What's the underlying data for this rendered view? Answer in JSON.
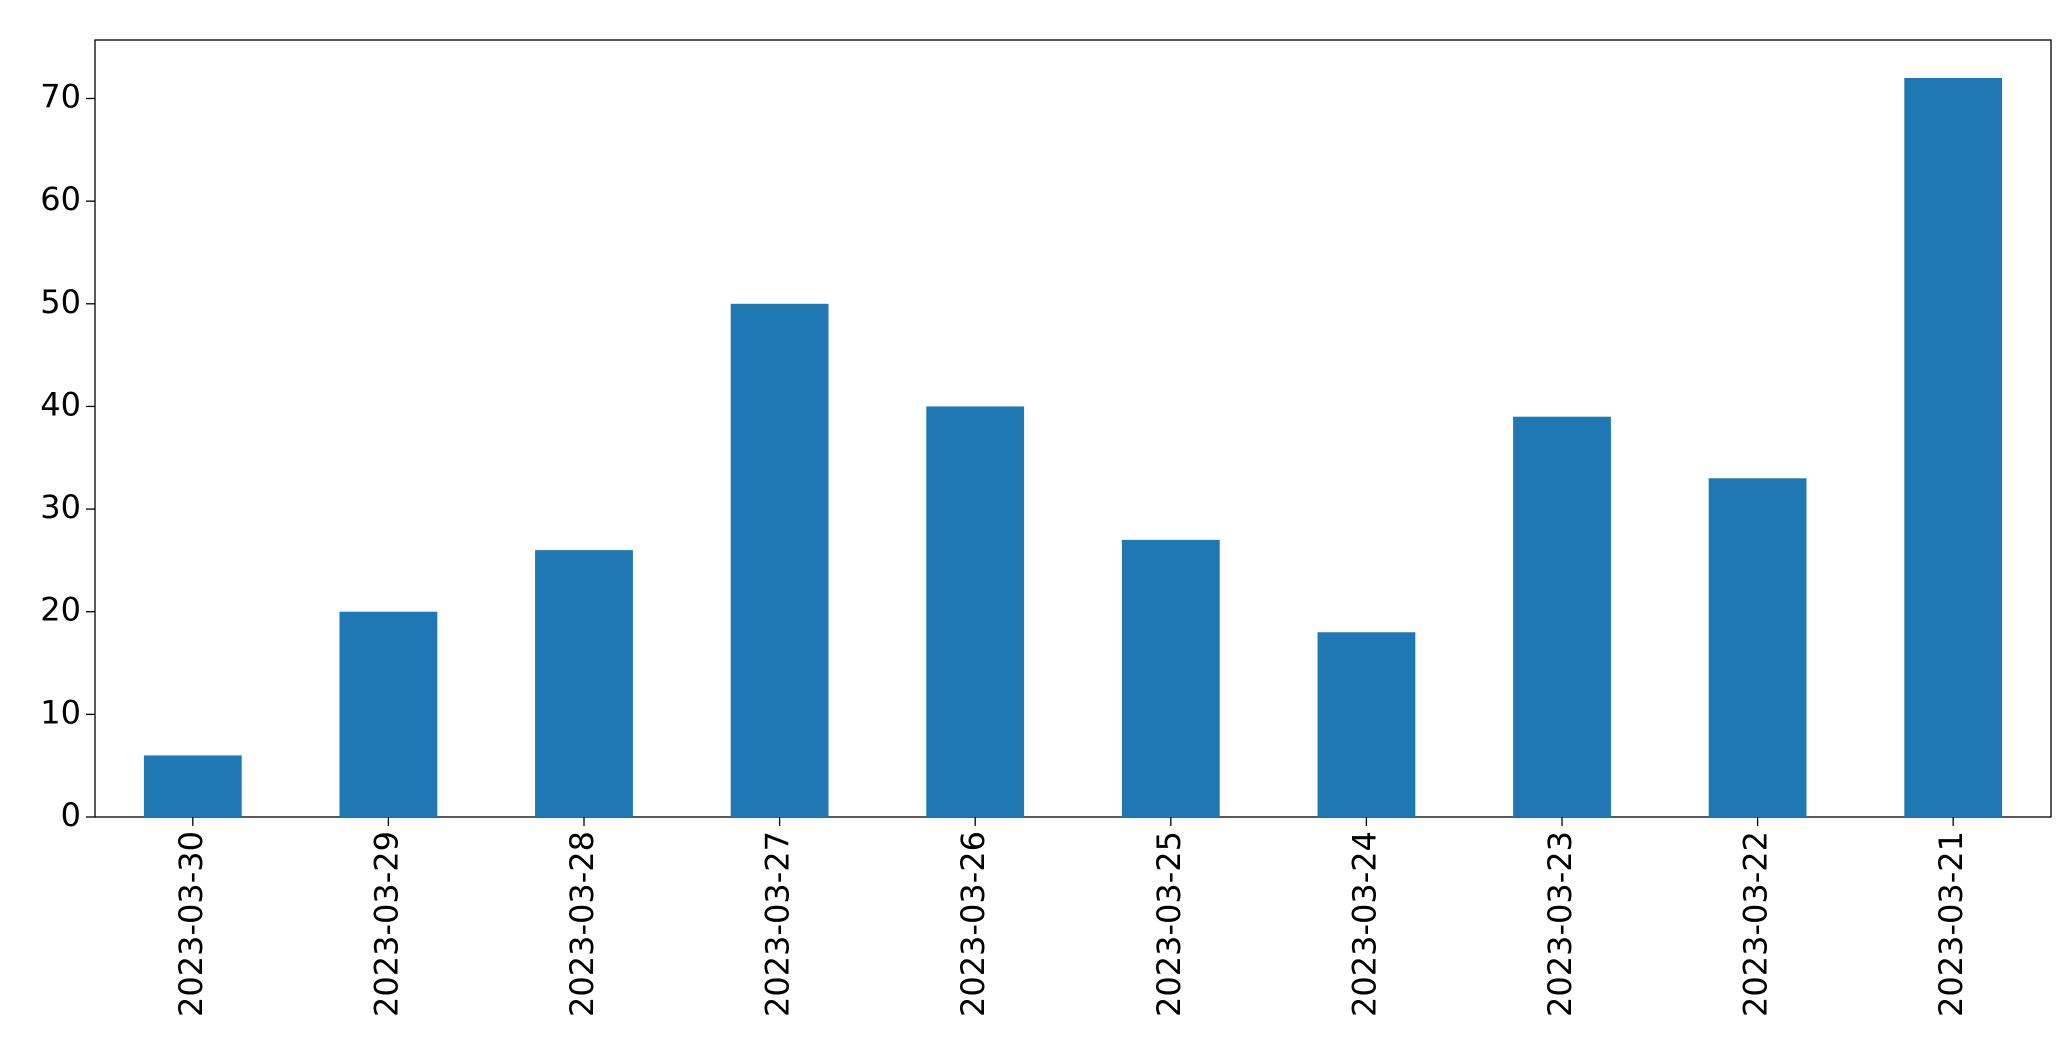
{
  "chart_data": {
    "type": "bar",
    "categories": [
      "2023-03-30",
      "2023-03-29",
      "2023-03-28",
      "2023-03-27",
      "2023-03-26",
      "2023-03-25",
      "2023-03-24",
      "2023-03-23",
      "2023-03-22",
      "2023-03-21"
    ],
    "values": [
      6,
      20,
      26,
      50,
      40,
      27,
      18,
      39,
      33,
      72
    ],
    "color": "#1f77b4",
    "ylim": [
      0,
      75.7
    ],
    "yticks": [
      0,
      10,
      20,
      30,
      40,
      50,
      60,
      70
    ],
    "grid": false
  }
}
